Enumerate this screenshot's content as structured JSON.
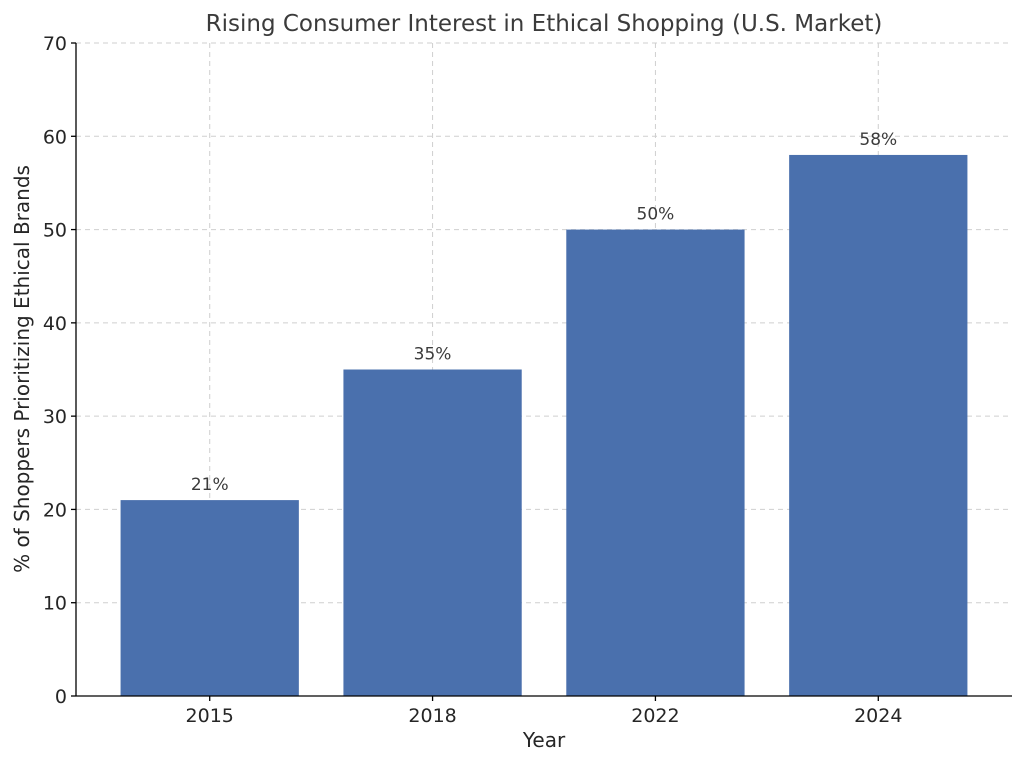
{
  "chart_data": {
    "type": "bar",
    "title": "Rising Consumer Interest in Ethical Shopping (U.S. Market)",
    "xlabel": "Year",
    "ylabel": "% of Shoppers Prioritizing Ethical Brands",
    "categories": [
      "2015",
      "2018",
      "2022",
      "2024"
    ],
    "values": [
      21,
      35,
      50,
      58
    ],
    "data_labels": [
      "21%",
      "35%",
      "50%",
      "58%"
    ],
    "ylim": [
      0,
      70
    ],
    "yticks": [
      0,
      10,
      20,
      30,
      40,
      50,
      60,
      70
    ],
    "grid": true,
    "legend": "none",
    "bar_color": "#4a70ad"
  }
}
